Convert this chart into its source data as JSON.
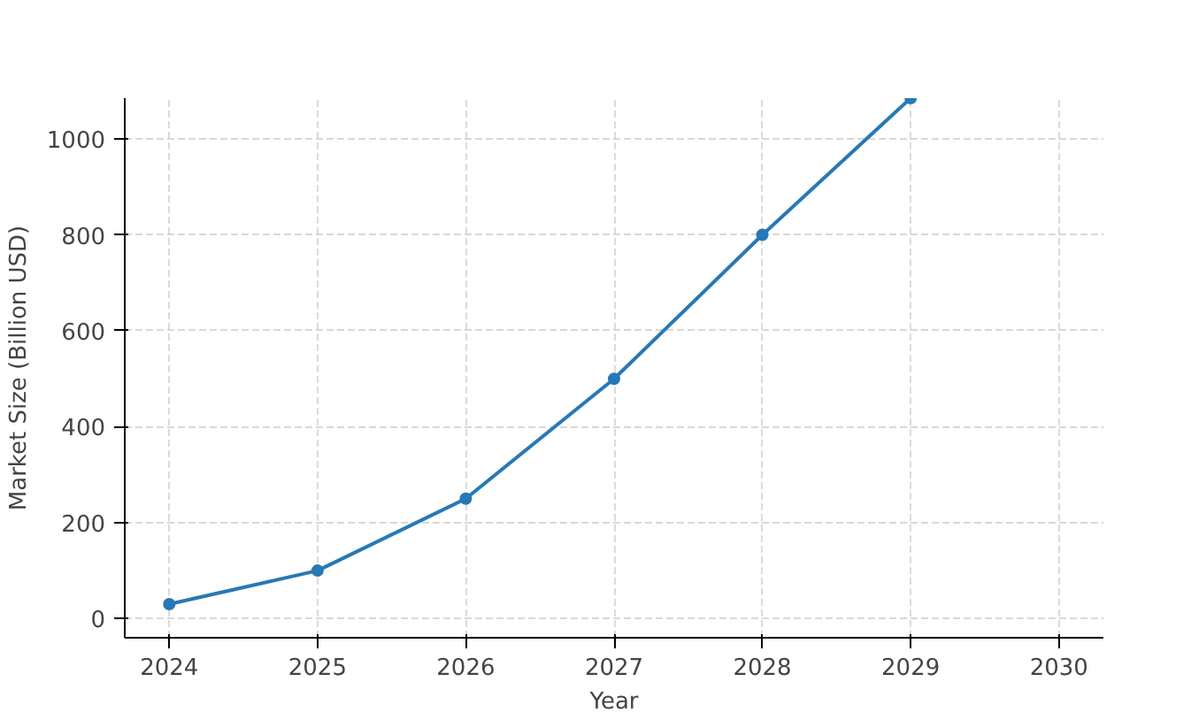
{
  "chart_data": {
    "type": "line",
    "xlabel": "Year",
    "ylabel": "Market Size (Billion USD)",
    "x": [
      2024,
      2025,
      2026,
      2027,
      2028,
      2029
    ],
    "series": [
      {
        "color": "#2878b5",
        "values": [
          30,
          100,
          250,
          500,
          800,
          1085
        ]
      }
    ],
    "xlim": [
      2023.7,
      2030.3
    ],
    "xticks": [
      2024,
      2025,
      2026,
      2027,
      2028,
      2029,
      2030
    ],
    "ylim": [
      -40,
      1085
    ],
    "yticks": [
      0,
      200,
      400,
      600,
      800,
      1000
    ],
    "grid": true,
    "marker": "circle",
    "line_style": "solid"
  }
}
